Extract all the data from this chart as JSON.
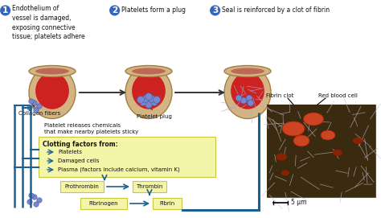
{
  "bg_color": "#f0f0f0",
  "step1_num": "1",
  "step1_text": "Endothelium of\nvessel is damaged,\nexposing connective\ntissue; platelets adhere",
  "step2_num": "2",
  "step2_text": "Platelets form a plug",
  "step3_num": "3",
  "step3_text": "Seal is reinforced by a clot of fibrin",
  "collagen_label": "Collagen fibers",
  "platelet_plug_label": "Platelet plug",
  "platelet_release_text": "Platelet releases chemicals\nthat make nearby platelets sticky",
  "clotting_header": "Clotting factors from:",
  "clotting_items": [
    "Platelets",
    "Damaged cells",
    "Plasma (factors include calcium, vitamin K)"
  ],
  "prothrombin": "Prothrombin",
  "thrombin": "Thrombin",
  "fibrinogen": "Fibrinogen",
  "fibrin": "Fibrin",
  "fibrin_clot_label": "Fibrin clot",
  "rbc_label": "Red blood cell",
  "scale_label": "5 μm",
  "arrow_color": "#1a6090",
  "box_fill": "#f5f5aa",
  "step_circle_color": "#3366bb",
  "text_color": "#111111",
  "vessel_outer": "#d4b483",
  "vessel_edge": "#a08040",
  "blood_red": "#cc2222",
  "platelet_blue": "#5566bb",
  "mic_bg_dark": "#2a1a10",
  "mic_bg_mid": "#5a3020",
  "fibrin_thread": "#c8bcd0",
  "rbc_color": "#cc4422"
}
